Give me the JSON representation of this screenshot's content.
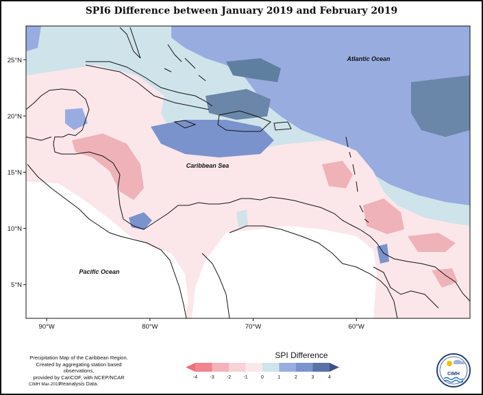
{
  "title": "SPI6 Difference between January 2019 and February 2019",
  "labels": {
    "atlantic": "Atlantic Ocean",
    "caribbean": "Caribbean Sea",
    "pacific": "Pacific Ocean"
  },
  "lat_ticks": [
    {
      "value": 25,
      "label": "25°N"
    },
    {
      "value": 20,
      "label": "20°N"
    },
    {
      "value": 15,
      "label": "15°N"
    },
    {
      "value": 10,
      "label": "10°N"
    },
    {
      "value": 5,
      "label": "5°N"
    }
  ],
  "lon_ticks": [
    {
      "value": -90,
      "label": "90°W"
    },
    {
      "value": -80,
      "label": "80°W"
    },
    {
      "value": -70,
      "label": "70°W"
    },
    {
      "value": -60,
      "label": "60°W"
    }
  ],
  "legend": {
    "title": "SPI Difference",
    "ticks": [
      "-4",
      "-3",
      "-2",
      "-1",
      "0",
      "1",
      "2",
      "3",
      "4"
    ],
    "colors": [
      "#f2848f",
      "#f2b3ba",
      "#f7d2d6",
      "#fbe8eb",
      "#cfe3ea",
      "#98ace0",
      "#7b93cc",
      "#5a73a6"
    ],
    "arrow_left_color": "#ee6f7d",
    "arrow_right_color": "#3f4f86"
  },
  "footnote": {
    "line1": "Precipitation Map of the Caribbean Region.",
    "line2": "Created by aggregating station based observations,",
    "line3": "provided by CariCOF, with NCEP/NCAR Reanalysis Data."
  },
  "credit": "CIMH Mar-2019",
  "logo_text": "CIMH",
  "colors": {
    "ocean_base": "#cfe3ea",
    "positive_1": "#98ace0",
    "positive_2": "#7b93cc",
    "positive_3": "#5f7fa0",
    "negative_1": "#fbe6ea",
    "negative_2": "#f7d2d6",
    "negative_3": "#eeb2b8"
  }
}
